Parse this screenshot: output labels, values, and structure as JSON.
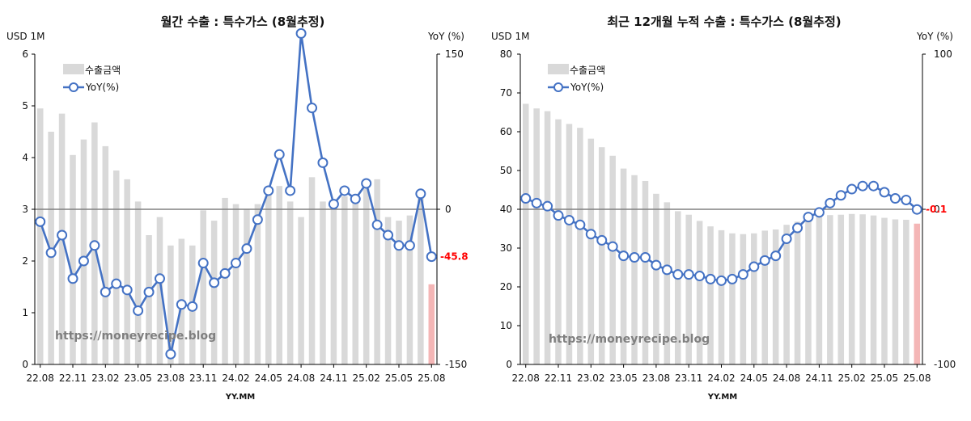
{
  "watermark": "https://moneyrecipe.blog",
  "colors": {
    "bar": "#d9d9d9",
    "bar_last": "#f4b6b6",
    "line": "#4472c4",
    "zero": "#808080",
    "last_label": "#ff0000"
  },
  "chart_data": [
    {
      "type": "bar",
      "title": "월간 수출 : 특수가스 (8월추정)",
      "y_left_label": "USD 1M",
      "y_right_label": "YoY (%)",
      "xlabel": "YY.MM",
      "ylim_left": [
        0,
        6
      ],
      "ylim_right": [
        -150,
        150
      ],
      "y_left_ticks": [
        "0",
        "1",
        "2",
        "3",
        "4",
        "5",
        "6"
      ],
      "y_right_ticks": [
        "-150",
        "0",
        "150"
      ],
      "x_tick_labels": [
        "22.08",
        "22.11",
        "23.02",
        "23.05",
        "23.08",
        "23.11",
        "24.02",
        "24.05",
        "24.08",
        "24.11",
        "25.02",
        "25.05",
        "25.08"
      ],
      "legend": [
        "수출금액",
        "YoY(%)"
      ],
      "last_label": "-45.8",
      "x": [
        "22.08",
        "22.09",
        "22.10",
        "22.11",
        "22.12",
        "23.01",
        "23.02",
        "23.03",
        "23.04",
        "23.05",
        "23.06",
        "23.07",
        "23.08",
        "23.09",
        "23.10",
        "23.11",
        "23.12",
        "24.01",
        "24.02",
        "24.03",
        "24.04",
        "24.05",
        "24.06",
        "24.07",
        "24.08",
        "24.09",
        "24.10",
        "24.11",
        "24.12",
        "25.01",
        "25.02",
        "25.03",
        "25.04",
        "25.05",
        "25.06",
        "25.07",
        "25.08"
      ],
      "series": [
        {
          "name": "수출금액",
          "kind": "bar",
          "values": [
            4.95,
            4.5,
            4.85,
            4.05,
            4.35,
            4.68,
            4.22,
            3.75,
            3.58,
            3.15,
            2.5,
            2.85,
            2.3,
            2.43,
            2.3,
            2.98,
            2.78,
            3.22,
            3.1,
            3.0,
            3.1,
            3.42,
            3.45,
            3.15,
            2.85,
            3.62,
            3.15,
            3.05,
            3.25,
            3.15,
            3.4,
            3.58,
            2.85,
            2.78,
            2.88,
            3.28,
            1.55
          ]
        },
        {
          "name": "YoY(%)",
          "kind": "line",
          "values": [
            -12,
            -42,
            -25,
            -67,
            -50,
            -35,
            -80,
            -72,
            -78,
            -98,
            -80,
            -67,
            -140,
            -92,
            -94,
            -52,
            -71,
            -62,
            -52,
            -38,
            -10,
            18,
            53,
            18,
            170,
            98,
            45,
            5,
            18,
            10,
            25,
            -15,
            -25,
            -35,
            -35,
            15,
            -45.8
          ]
        }
      ]
    },
    {
      "type": "bar",
      "title": "최근 12개월 누적 수출 : 특수가스 (8월추정)",
      "y_left_label": "USD 1M",
      "y_right_label": "YoY (%)",
      "xlabel": "YY.MM",
      "ylim_left": [
        0,
        80
      ],
      "ylim_right": [
        -100,
        100
      ],
      "y_left_ticks": [
        "0",
        "10",
        "20",
        "30",
        "40",
        "50",
        "60",
        "70",
        "80"
      ],
      "y_right_ticks": [
        "-100",
        "0",
        "100"
      ],
      "x_tick_labels": [
        "22.08",
        "22.11",
        "23.02",
        "23.05",
        "23.08",
        "23.11",
        "24.02",
        "24.05",
        "24.08",
        "24.11",
        "25.02",
        "25.05",
        "25.08"
      ],
      "legend": [
        "수출금액",
        "YoY(%)"
      ],
      "last_label": "-0.1",
      "x": [
        "22.08",
        "22.09",
        "22.10",
        "22.11",
        "22.12",
        "23.01",
        "23.02",
        "23.03",
        "23.04",
        "23.05",
        "23.06",
        "23.07",
        "23.08",
        "23.09",
        "23.10",
        "23.11",
        "23.12",
        "24.01",
        "24.02",
        "24.03",
        "24.04",
        "24.05",
        "24.06",
        "24.07",
        "24.08",
        "24.09",
        "24.10",
        "24.11",
        "24.12",
        "25.01",
        "25.02",
        "25.03",
        "25.04",
        "25.05",
        "25.06",
        "25.07",
        "25.08"
      ],
      "series": [
        {
          "name": "수출금액",
          "kind": "bar",
          "values": [
            67.2,
            66,
            65.3,
            63.2,
            62,
            61,
            58.2,
            56,
            53.8,
            50.5,
            48.8,
            47.3,
            44,
            41.8,
            39.5,
            38.6,
            37,
            35.6,
            34.6,
            33.8,
            33.6,
            33.8,
            34.5,
            34.8,
            36,
            36.8,
            37.5,
            38,
            38.5,
            38.6,
            38.8,
            38.7,
            38.4,
            37.8,
            37.4,
            37.3,
            36.3
          ]
        },
        {
          "name": "YoY(%)",
          "kind": "line",
          "values": [
            7,
            4,
            2,
            -4,
            -7,
            -10,
            -16,
            -20,
            -24,
            -30,
            -31,
            -31,
            -36,
            -39,
            -42,
            -42,
            -43,
            -45,
            -46,
            -45,
            -42,
            -37,
            -33,
            -30,
            -19,
            -12,
            -5,
            -2,
            4,
            9,
            13,
            15,
            15,
            11,
            7,
            6,
            -0.1
          ]
        }
      ]
    }
  ]
}
